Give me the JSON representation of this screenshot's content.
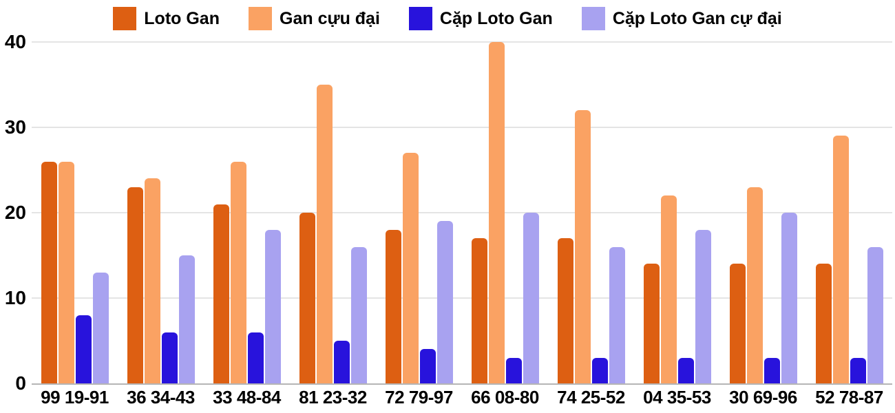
{
  "chart_data": {
    "type": "bar",
    "title": "",
    "xlabel": "",
    "ylabel": "",
    "categories": [
      "99 19-91",
      "36 34-43",
      "33 48-84",
      "81 23-32",
      "72 79-97",
      "66 08-80",
      "74 25-52",
      "04 35-53",
      "30 69-96",
      "52 78-87"
    ],
    "series": [
      {
        "name": "Loto Gan",
        "color": "#dd5f12",
        "values": [
          26,
          23,
          21,
          20,
          18,
          17,
          17,
          14,
          14,
          14
        ]
      },
      {
        "name": "Gan cựu đại",
        "color": "#faa263",
        "values": [
          26,
          24,
          26,
          35,
          27,
          40,
          32,
          22,
          23,
          29
        ]
      },
      {
        "name": "Cặp Loto Gan",
        "color": "#2813dc",
        "values": [
          8,
          6,
          6,
          5,
          4,
          3,
          3,
          3,
          3,
          3
        ]
      },
      {
        "name": "Cặp Loto Gan cự đại",
        "color": "#a8a2f0",
        "values": [
          13,
          15,
          18,
          16,
          19,
          20,
          16,
          18,
          20,
          16
        ]
      }
    ],
    "y_ticks": [
      0,
      10,
      20,
      30,
      40
    ],
    "ylim": [
      0,
      40
    ],
    "grid": true,
    "legend_position": "top",
    "colors": {
      "axis_text": "#000000",
      "gridline": "#e4e4e4",
      "baseline": "#b5b5b5",
      "background": "#ffffff"
    }
  }
}
